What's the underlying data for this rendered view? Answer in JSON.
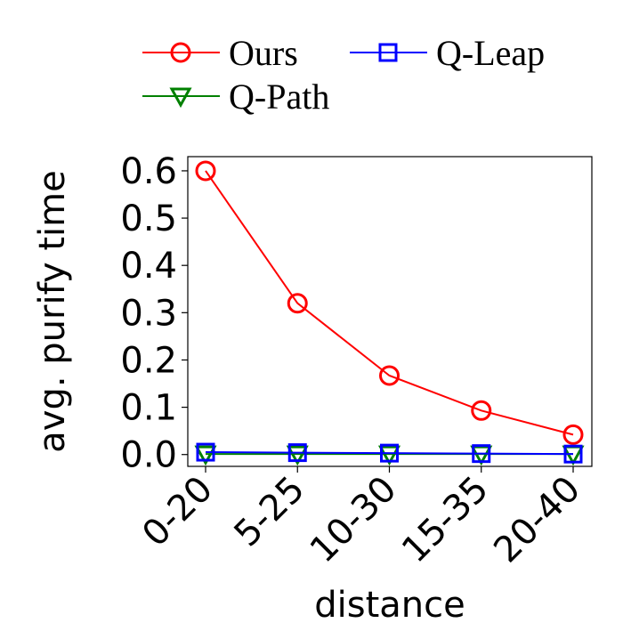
{
  "chart_data": {
    "type": "line",
    "title": "",
    "xlabel": "distance",
    "ylabel": "avg. purify time",
    "categories": [
      "0-20",
      "5-25",
      "10-30",
      "15-35",
      "20-40"
    ],
    "ylim": [
      -0.025,
      0.63
    ],
    "yticks": [
      "0.0",
      "0.1",
      "0.2",
      "0.3",
      "0.4",
      "0.5",
      "0.6"
    ],
    "legend_position": "top",
    "series": [
      {
        "name": "Ours",
        "color": "#ff0000",
        "marker": "circle",
        "values": [
          0.6,
          0.32,
          0.167,
          0.093,
          0.042
        ]
      },
      {
        "name": "Q-Leap",
        "color": "#0000ff",
        "marker": "square",
        "values": [
          0.005,
          0.004,
          0.003,
          0.002,
          0.001
        ]
      },
      {
        "name": "Q-Path",
        "color": "#008000",
        "marker": "triangle-down",
        "values": [
          0.001,
          0.001,
          0.001,
          0.001,
          0.001
        ]
      }
    ]
  }
}
